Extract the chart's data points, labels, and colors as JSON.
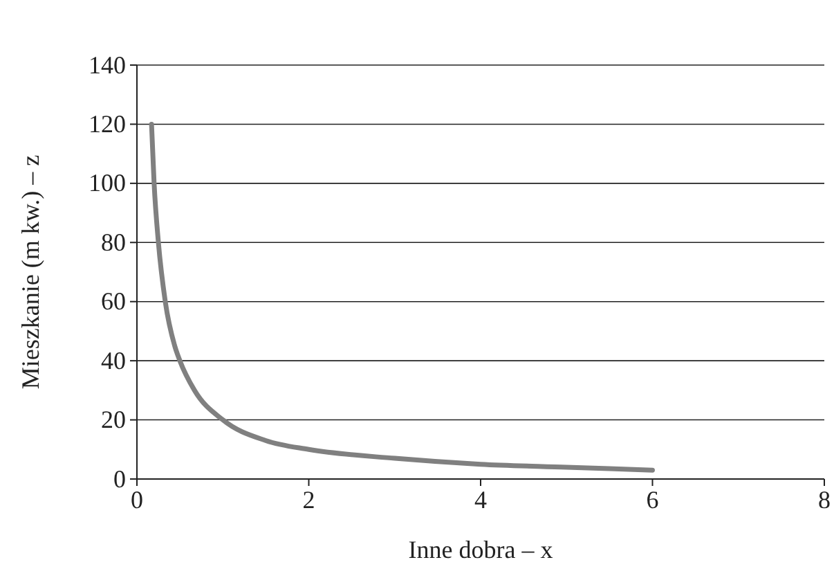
{
  "chart_data": {
    "type": "line",
    "xlabel": "Inne dobra – x",
    "ylabel": "Mieszkanie (m kw.) – z",
    "xlim": [
      0,
      8
    ],
    "xticks": [
      0,
      2,
      4,
      6,
      8
    ],
    "ylim": [
      0,
      140
    ],
    "yticks": [
      0,
      20,
      40,
      60,
      80,
      100,
      120,
      140
    ],
    "grid": "y",
    "marker": "none",
    "line_style": "solid",
    "series": [
      {
        "color": "#808080",
        "x": [
          0.17,
          0.2,
          0.25,
          0.33,
          0.44,
          0.5,
          0.67,
          1,
          1.5,
          2,
          3,
          4,
          5,
          6
        ],
        "values": [
          120,
          100,
          80,
          60,
          45,
          40,
          30,
          20,
          13,
          10,
          7,
          5,
          4,
          3
        ]
      }
    ]
  }
}
